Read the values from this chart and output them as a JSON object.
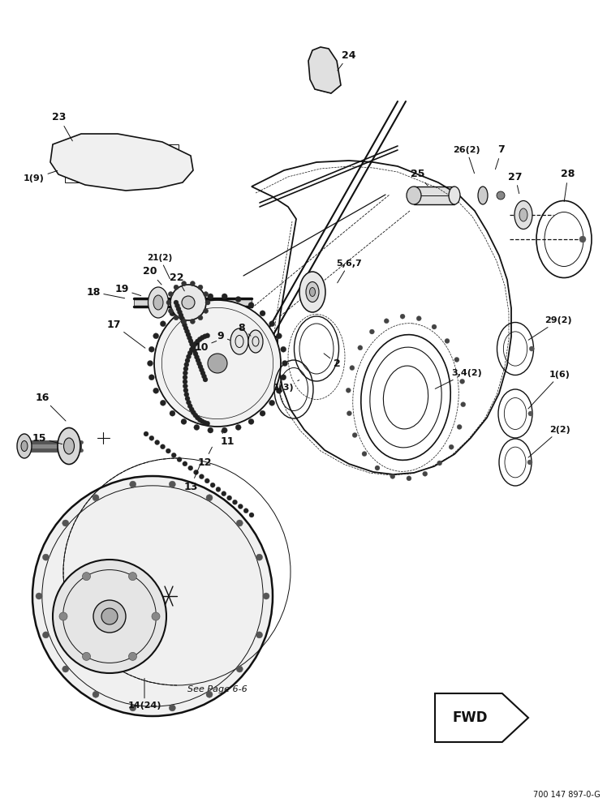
{
  "bg_color": "#ffffff",
  "lc": "#111111",
  "fig_w": 7.48,
  "fig_h": 10.0,
  "dpi": 100,
  "footer": "700 147 897-0-G"
}
